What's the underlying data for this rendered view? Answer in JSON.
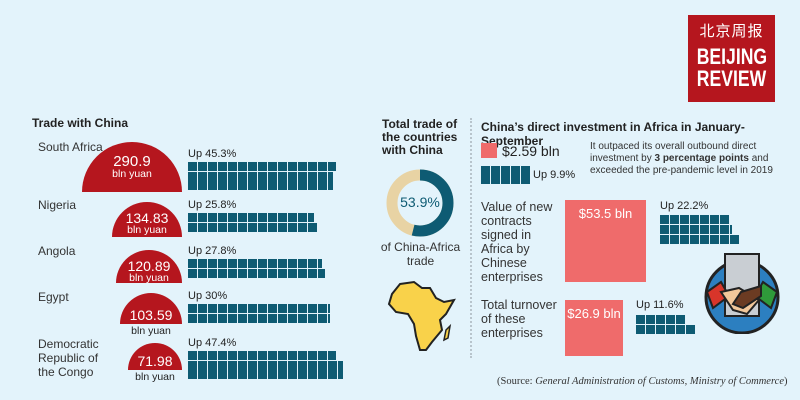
{
  "logo": {
    "chinese": "北京周报",
    "line1": "BEIJING",
    "line2": "REVIEW",
    "color": "#b5161e"
  },
  "trade": {
    "title": "Trade with China",
    "unit": "bln yuan",
    "countries": [
      {
        "name": "South Africa",
        "value": "290.9",
        "growth": "Up 45.3%",
        "growth_pct": 45.3
      },
      {
        "name": "Nigeria",
        "value": "134.83",
        "growth": "Up 25.8%",
        "growth_pct": 25.8
      },
      {
        "name": "Angola",
        "value": "120.89",
        "growth": "Up 27.8%",
        "growth_pct": 27.8
      },
      {
        "name": "Egypt",
        "value": "103.59",
        "growth": "Up 30%",
        "growth_pct": 30
      },
      {
        "name": "Democratic Republic of the Congo",
        "value": "71.98",
        "growth": "Up 47.4%",
        "growth_pct": 47.4
      }
    ]
  },
  "share": {
    "title": "Total trade of the countries with China",
    "value": "53.9%",
    "pct": 53.9,
    "caption": "of China-Africa trade",
    "colors": {
      "share": "#0e5b73",
      "rest": "#e8d3a4"
    }
  },
  "investment": {
    "title": "China’s direct investment in Africa in January-September",
    "direct": {
      "value": "$2.59 bln",
      "growth": "Up 9.9%"
    },
    "note_pre": "It outpaced its overall outbound direct investment by ",
    "note_bold": "3 percentage points",
    "note_post": " and exceeded the pre-pandemic level in 2019",
    "contracts": {
      "label": "Value of new contracts signed in Africa by Chinese enterprises",
      "value": "$53.5 bln",
      "growth": "Up 22.2%"
    },
    "turnover": {
      "label": "Total turnover of these enterprises",
      "value": "$26.9 bln",
      "growth": "Up 11.6%"
    }
  },
  "source_pre": "(Source: ",
  "source_italic": "General Administration of Customs, Ministry of Commerce",
  "source_post": ")",
  "colors": {
    "red": "#b5161e",
    "teal": "#0e5b73",
    "salmon": "#ef6b6b",
    "background": "#e3f3fb",
    "africa": "#f9d24a"
  }
}
